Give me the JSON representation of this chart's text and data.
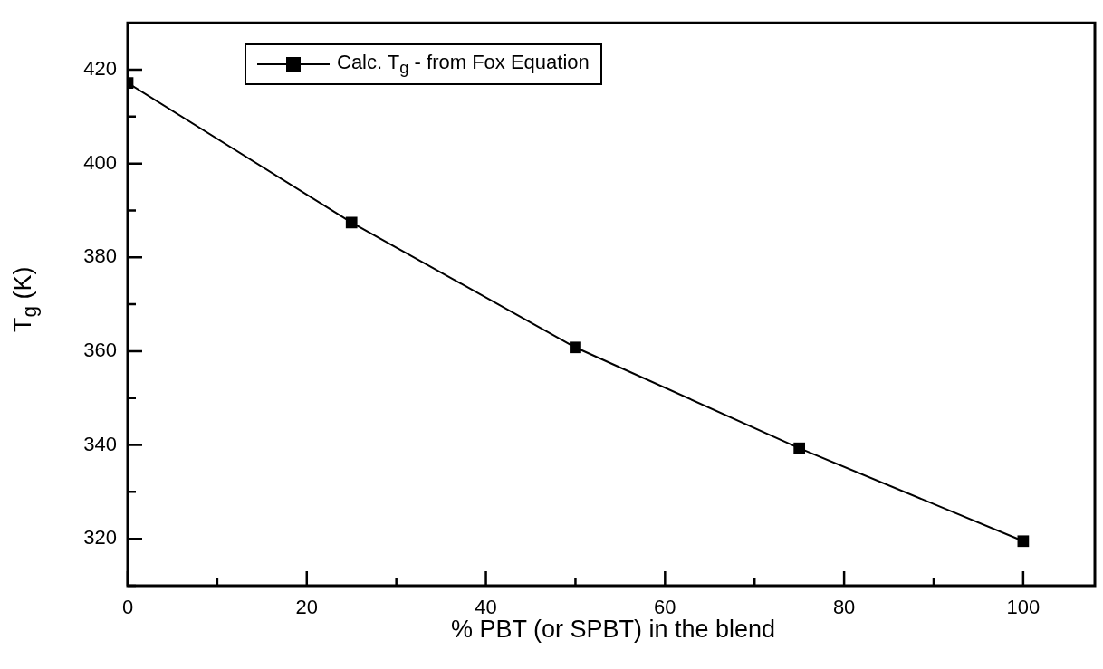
{
  "chart_data": {
    "type": "line",
    "xlabel": "% PBT (or SPBT) in the blend",
    "ylabel": "T$_{g}$ (K)",
    "x": [
      0,
      25,
      50,
      75,
      100
    ],
    "series": [
      {
        "name": "Calc. T$_{g}$ - from Fox Equation",
        "color": "#000000",
        "values": [
          417.2,
          387.4,
          360.8,
          339.3,
          319.5
        ]
      }
    ],
    "xlim": [
      0,
      108
    ],
    "xticks": [
      0,
      {
        "value": 10,
        "label": null
      },
      20,
      {
        "value": 30,
        "label": null
      },
      40,
      {
        "value": 50,
        "label": null
      },
      60,
      {
        "value": 70,
        "label": null
      },
      80,
      {
        "value": 90,
        "label": null
      },
      100
    ],
    "ylim": [
      310,
      430
    ],
    "yticks": [
      {
        "value": 310,
        "label": null
      },
      320,
      {
        "value": 330,
        "label": null
      },
      340,
      {
        "value": 350,
        "label": null
      },
      360,
      {
        "value": 370,
        "label": null
      },
      380,
      {
        "value": 390,
        "label": null
      },
      400,
      {
        "value": 410,
        "label": null
      },
      420
    ],
    "grid": false,
    "legend": "top left",
    "marker": "square",
    "line_style": "solid"
  }
}
